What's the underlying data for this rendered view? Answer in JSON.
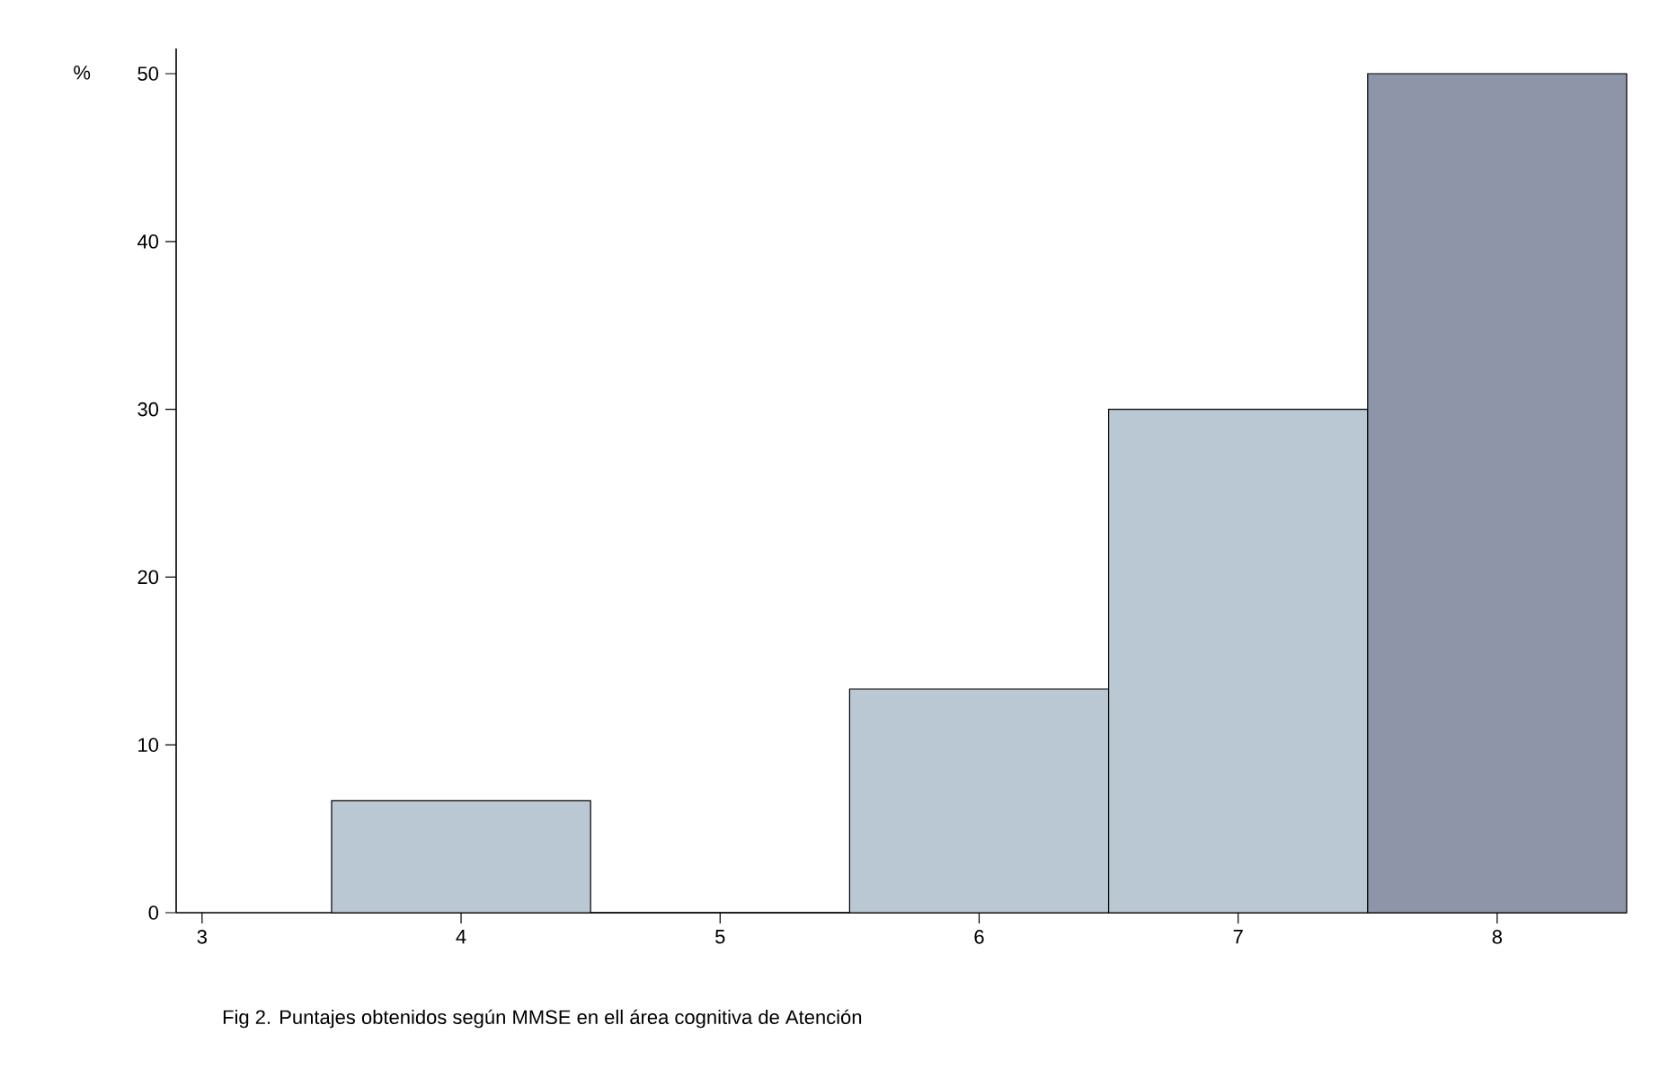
{
  "chart_data": {
    "type": "histogram",
    "bins": [
      3.5,
      4.5,
      5.5,
      6.5,
      7.5,
      8.5
    ],
    "values": [
      6.67,
      0,
      13.33,
      30,
      50
    ],
    "colors": [
      "#bac8d3",
      "#bac8d3",
      "#bac8d3",
      "#bac8d3",
      "#8f95a8"
    ],
    "xlim": [
      2.9,
      8.5
    ],
    "xticks": [
      3,
      4,
      5,
      6,
      7,
      8
    ],
    "ylim": [
      0,
      51.5
    ],
    "yticks": [
      0,
      10,
      20,
      30,
      40,
      50
    ],
    "ylabel": "%",
    "grid": false,
    "annotations": [
      "Fig 2. Puntajes obtenidos según MMSE en ell área cognitiva de Atención"
    ]
  }
}
